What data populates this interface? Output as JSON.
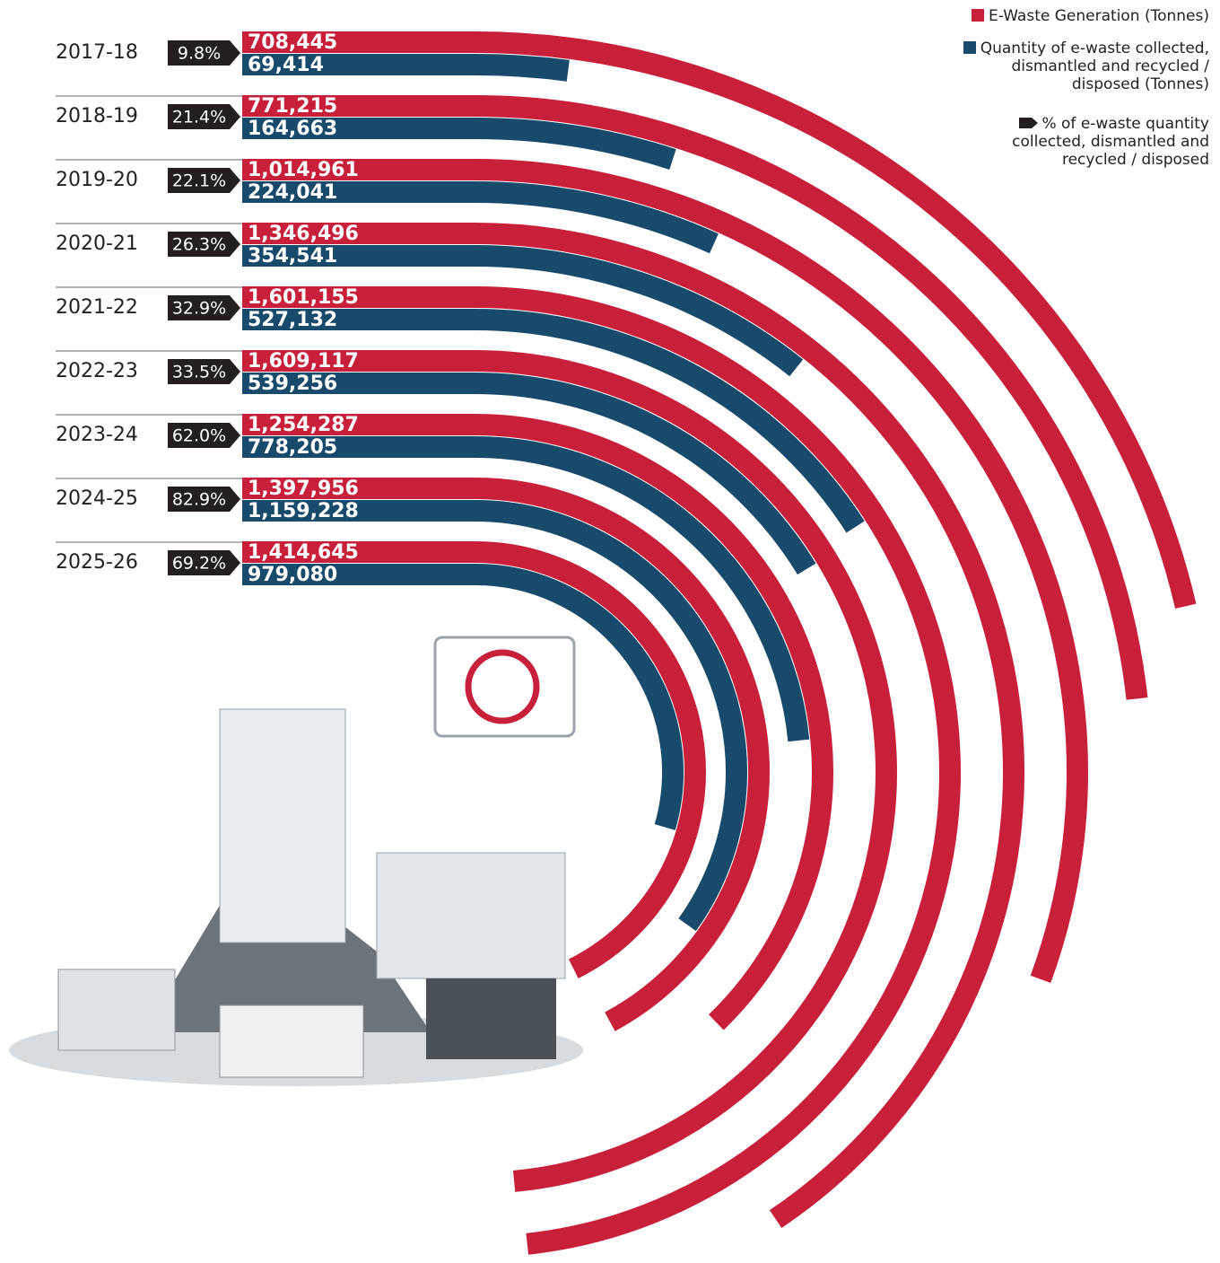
{
  "chart_data": {
    "type": "radial-bar",
    "categories": [
      "2017-18",
      "2018-19",
      "2019-20",
      "2020-21",
      "2021-22",
      "2022-23",
      "2023-24",
      "2024-25",
      "2025-26"
    ],
    "series": [
      {
        "name": "E-Waste Generation (Tonnes)",
        "color": "#c8203a",
        "values": [
          708445,
          771215,
          1014961,
          1346496,
          1601155,
          1609117,
          1254287,
          1397956,
          1414645
        ],
        "value_labels": [
          "708,445",
          "771,215",
          "1,014,961",
          "1,346,496",
          "1,601,155",
          "1,609,117",
          "1,254,287",
          "1,397,956",
          "1,414,645"
        ]
      },
      {
        "name": "Quantity of e-waste collected, dismantled and recycled / disposed (Tonnes)",
        "color": "#174a6b",
        "values": [
          69414,
          164663,
          224041,
          354541,
          527132,
          539256,
          778205,
          1159228,
          979080
        ],
        "value_labels": [
          "69,414",
          "164,663",
          "224,041",
          "354,541",
          "527,132",
          "539,256",
          "778,205",
          "1,159,228",
          "979,080"
        ]
      },
      {
        "name": "% of e-waste quantity collected, dismantled and recycled / disposed",
        "color": "#231f20",
        "values": [
          9.8,
          21.4,
          22.1,
          26.3,
          32.9,
          33.5,
          62.0,
          82.9,
          69.2
        ],
        "value_labels": [
          "9.8%",
          "21.4%",
          "22.1%",
          "26.3%",
          "32.9%",
          "33.5%",
          "62.0%",
          "82.9%",
          "69.2%"
        ]
      }
    ]
  }
}
